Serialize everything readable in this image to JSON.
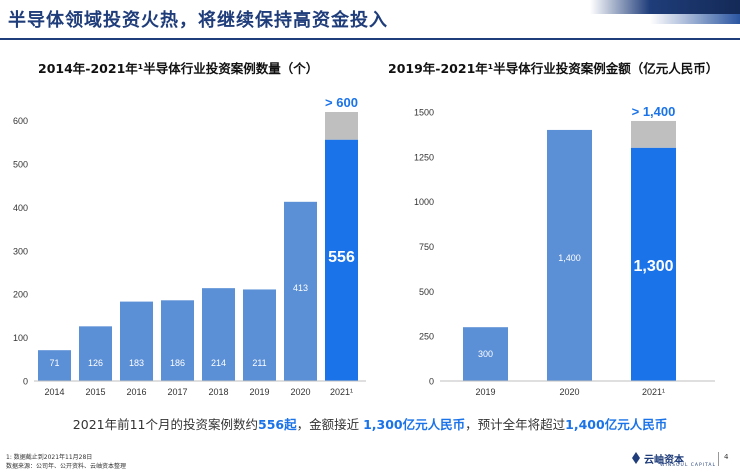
{
  "page": {
    "title": "半导体领域投资火热，将继续保持高资金投入",
    "summary": {
      "pre": "2021年前11个月的投资案例数约",
      "v1": "556起",
      "mid": "，金额接近 ",
      "v2": "1,300亿元人民币",
      "mid2": "，预计全年将超过",
      "v3": "1,400亿元人民币"
    },
    "footnote1": "1: 数据截止到2021年11月28日",
    "footnote2": "数据来源：公司年、公开资料、云岫资本整理",
    "logo_text": "云岫资本",
    "logo_sub": "WINSOUL CAPITAL",
    "page_number": "4"
  },
  "chart_data": [
    {
      "type": "bar",
      "title": "2014年-2021年¹半导体行业投资案例数量（个）",
      "categories": [
        "2014",
        "2015",
        "2016",
        "2017",
        "2018",
        "2019",
        "2020",
        "2021¹"
      ],
      "values": [
        71,
        126,
        183,
        186,
        214,
        211,
        413,
        556
      ],
      "value_labels": [
        "71",
        "126",
        "183",
        "186",
        "214",
        "211",
        "413",
        "556"
      ],
      "projected_total": 620,
      "projected_label": "> 600",
      "yticks": [
        0,
        100,
        200,
        300,
        400,
        500,
        600
      ],
      "ylim": [
        0,
        620
      ],
      "grid": false,
      "colors": {
        "bar": "#5b8fd6",
        "highlight": "#1a73e8",
        "projection": "#bfbfbf"
      }
    },
    {
      "type": "bar",
      "title": "2019年-2021年¹半导体行业投资案例金额（亿元人民币）",
      "categories": [
        "2019",
        "2020",
        "2021¹"
      ],
      "values": [
        300,
        1400,
        1300
      ],
      "value_labels": [
        "300",
        "1,400",
        "1,300"
      ],
      "projected_total": 1450,
      "projected_label": "> 1,400",
      "yticks": [
        0,
        250,
        500,
        750,
        1000,
        1250,
        1500
      ],
      "ylim": [
        0,
        1500
      ],
      "grid": false,
      "colors": {
        "bar": "#5b8fd6",
        "highlight": "#1a73e8",
        "projection": "#bfbfbf"
      }
    }
  ]
}
